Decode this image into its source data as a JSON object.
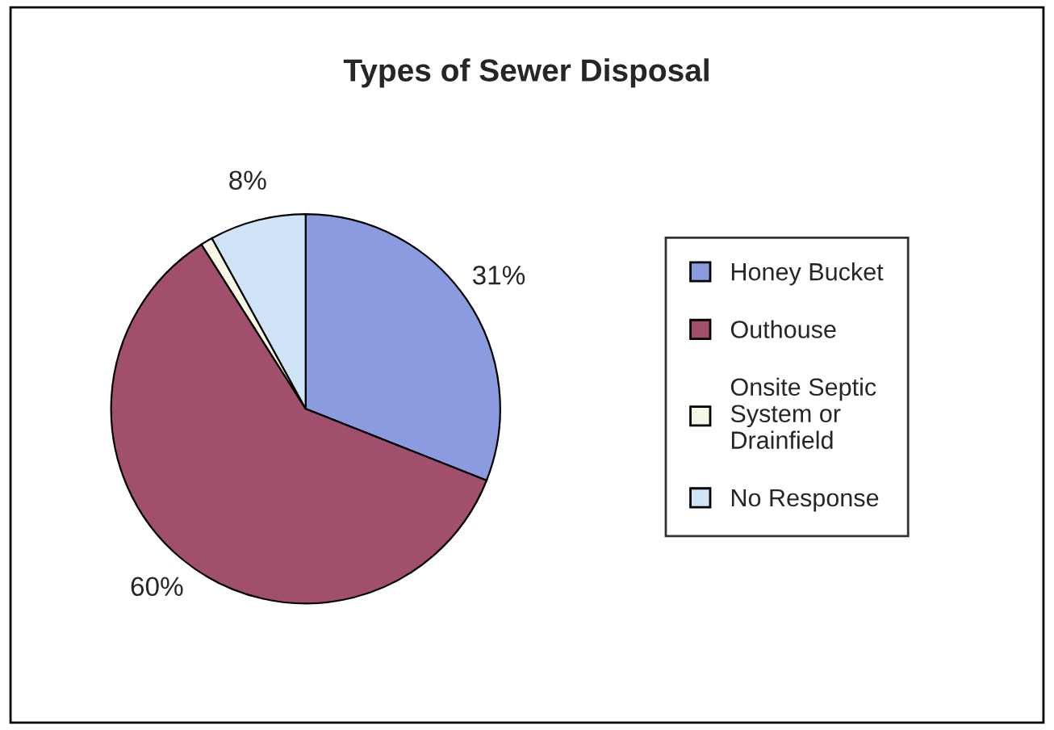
{
  "chart_data": {
    "type": "pie",
    "title": "Types of Sewer Disposal",
    "categories": [
      "Honey Bucket",
      "Outhouse",
      "Onsite Septic System or Drainfield",
      "No Response"
    ],
    "values": [
      31,
      60,
      1,
      8
    ],
    "colors": [
      "#8a9be0",
      "#a24f6e",
      "#f7f7e6",
      "#cfe4f6"
    ],
    "value_labels": [
      "31%",
      "60%",
      null,
      "8%"
    ],
    "legend": "right"
  }
}
